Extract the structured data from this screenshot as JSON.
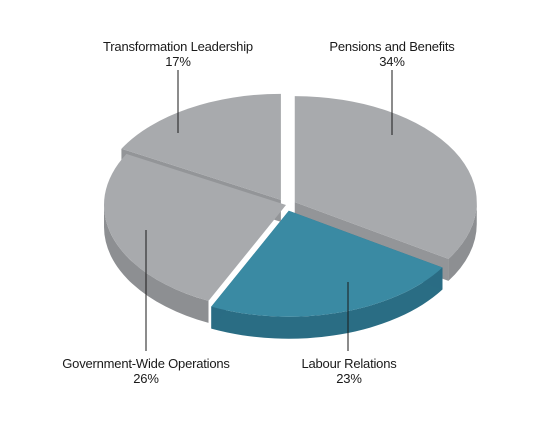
{
  "chart_data": {
    "type": "pie",
    "style": "3d-exploded",
    "start_angle_deg": -90,
    "direction": "clockwise",
    "legend": "none",
    "slices": [
      {
        "label": "Pensions and Benefits",
        "pct_label": "34%",
        "value": 34,
        "top_color": "#a8aaad",
        "side_color": "#8d8f92",
        "exploded": true,
        "highlight": false
      },
      {
        "label": "Labour Relations",
        "pct_label": "23%",
        "value": 23,
        "top_color": "#3a8aa3",
        "side_color": "#2a6d84",
        "exploded": true,
        "highlight": true
      },
      {
        "label": "Government-Wide Operations",
        "pct_label": "26%",
        "value": 26,
        "top_color": "#a8aaad",
        "side_color": "#8d8f92",
        "exploded": false,
        "highlight": false
      },
      {
        "label": "Transformation Leadership",
        "pct_label": "17%",
        "value": 17,
        "top_color": "#a8aaad",
        "side_color": "#8d8f92",
        "exploded": true,
        "highlight": false
      }
    ]
  }
}
